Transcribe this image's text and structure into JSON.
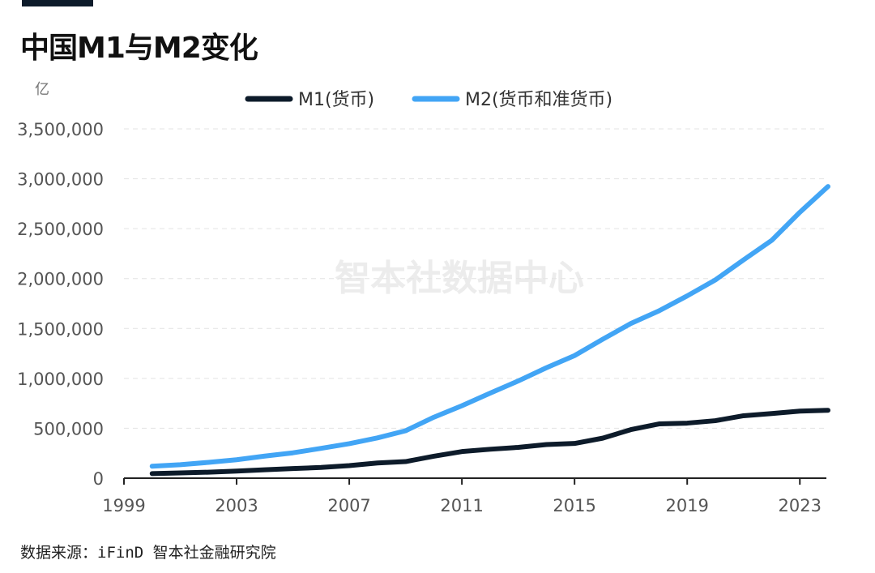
{
  "title": "中国M1与M2变化",
  "unit": "亿",
  "footer": "数据来源：iFinD 智本社金融研究院",
  "watermark": "智本社数据中心",
  "chart_data": {
    "type": "line",
    "title": "中国M1与M2变化",
    "ylabel": "亿",
    "xlim": [
      1999,
      2024
    ],
    "ylim": [
      0,
      3500000
    ],
    "x_ticks": [
      1999,
      2003,
      2007,
      2011,
      2015,
      2019,
      2023
    ],
    "y_ticks": [
      0,
      500000,
      1000000,
      1500000,
      2000000,
      2500000,
      3000000,
      3500000
    ],
    "y_tick_labels": [
      "0",
      "500,000",
      "1,000,000",
      "1,500,000",
      "2,000,000",
      "2,500,000",
      "3,000,000",
      "3,500,000"
    ],
    "grid": "horizontal-dashed",
    "legend": "top",
    "x": [
      2000,
      2001,
      2002,
      2003,
      2004,
      2005,
      2006,
      2007,
      2008,
      2009,
      2010,
      2011,
      2012,
      2013,
      2014,
      2015,
      2016,
      2017,
      2018,
      2019,
      2020,
      2021,
      2022,
      2023,
      2024
    ],
    "series": [
      {
        "name": "M1(货币)",
        "color": "#0d1b2a",
        "values": [
          45837,
          53147,
          59872,
          70882,
          84119,
          95970,
          107279,
          126035,
          152560,
          166217,
          220002,
          266622,
          289848,
          308665,
          337291,
          348056,
          400953,
          486557,
          543790,
          551686,
          576009,
          625581,
          647443,
          671675,
          680443
        ]
      },
      {
        "name": "M2(货币和准货币)",
        "color": "#42a5f5",
        "values": [
          119898,
          134610,
          158302,
          185007,
          221223,
          254107,
          298756,
          345578,
          403442,
          475167,
          610225,
          725852,
          851591,
          974149,
          1106525,
          1228375,
          1392278,
          1550067,
          1676769,
          1826744,
          1986489,
          2186796,
          2382899,
          2664321,
          2922713
        ]
      }
    ]
  }
}
